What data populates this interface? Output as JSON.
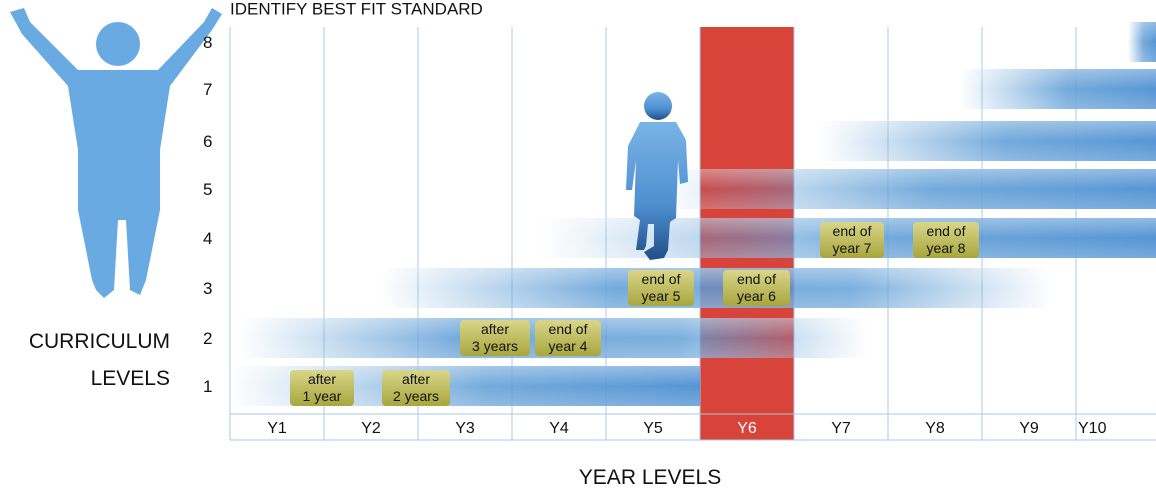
{
  "title": "IDENTIFY BEST FIT STANDARD",
  "y_axis_label": [
    "CURRICULUM",
    "LEVELS"
  ],
  "x_axis_label": "YEAR LEVELS",
  "levels": [
    "1",
    "2",
    "3",
    "4",
    "5",
    "6",
    "7",
    "8"
  ],
  "years": [
    "Y1",
    "Y2",
    "Y3",
    "Y4",
    "Y5",
    "Y6",
    "Y7",
    "Y8",
    "Y9",
    "Y10"
  ],
  "badges": [
    {
      "lines": [
        "after",
        "1 year"
      ]
    },
    {
      "lines": [
        "after",
        "2 years"
      ]
    },
    {
      "lines": [
        "after",
        "3 years"
      ]
    },
    {
      "lines": [
        "end of",
        "year 4"
      ]
    },
    {
      "lines": [
        "end of",
        "year 5"
      ]
    },
    {
      "lines": [
        "end of",
        "year 6"
      ]
    },
    {
      "lines": [
        "end of",
        "year 7"
      ]
    },
    {
      "lines": [
        "end of",
        "year 8"
      ]
    }
  ]
}
